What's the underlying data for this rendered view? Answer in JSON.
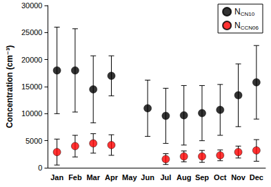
{
  "chart_data": {
    "type": "scatter",
    "y_label": "Concentration (cm⁻³)",
    "categories": [
      "Jan",
      "Feb",
      "Mar",
      "Apr",
      "May",
      "Jun",
      "Jul",
      "Aug",
      "Sep",
      "Oct",
      "Nov",
      "Dec"
    ],
    "series": [
      {
        "name": "NCN10",
        "color": "#000000",
        "marker": "circle",
        "values": [
          18000,
          18000,
          14500,
          17000,
          null,
          11000,
          9600,
          9700,
          10100,
          10700,
          13400,
          15800
        ],
        "errors": [
          8000,
          7700,
          6200,
          3700,
          null,
          5200,
          5100,
          5500,
          5100,
          4700,
          5800,
          6800
        ]
      },
      {
        "name": "NCCN06",
        "color": "#ff0000",
        "marker": "circle",
        "values": [
          2900,
          4000,
          4500,
          4200,
          null,
          null,
          1600,
          2100,
          2100,
          2300,
          2900,
          3200
        ],
        "errors": [
          2400,
          2000,
          1800,
          1900,
          null,
          null,
          1000,
          1000,
          1100,
          1000,
          1100,
          2000
        ]
      }
    ],
    "ylim": [
      0,
      30000
    ],
    "yticks": [
      0,
      5000,
      10000,
      15000,
      20000,
      25000,
      30000
    ],
    "grid": false,
    "legend": "upper right"
  }
}
